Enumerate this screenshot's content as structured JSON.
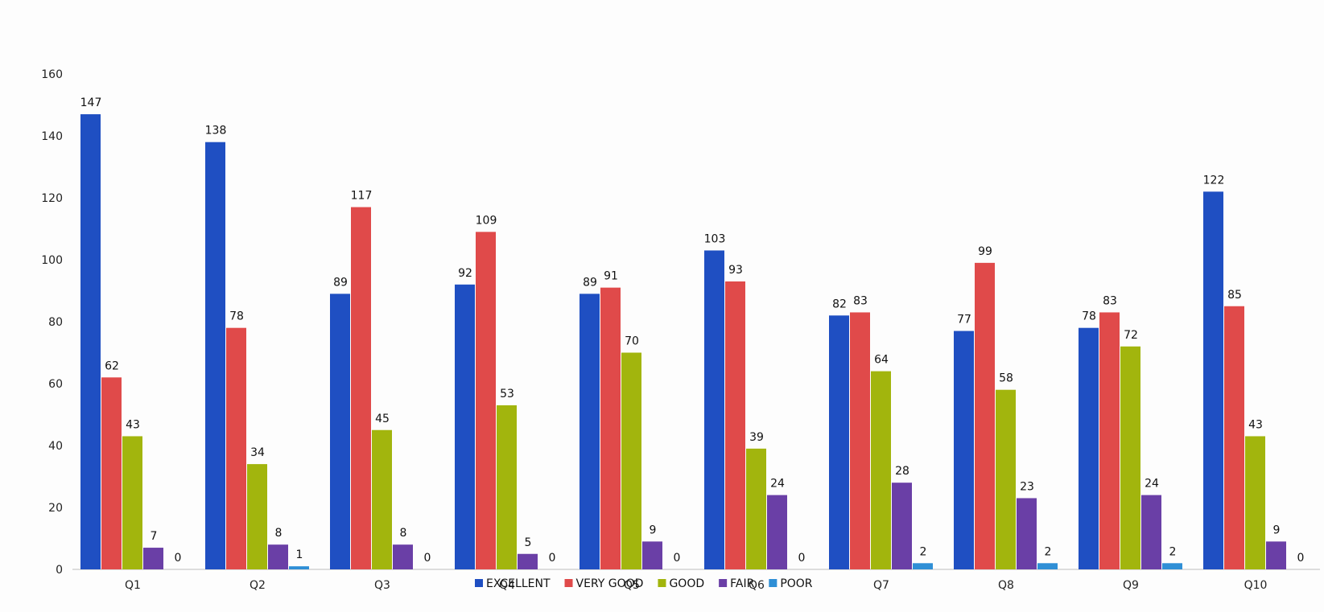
{
  "chart_data": {
    "type": "bar",
    "title": "",
    "xlabel": "",
    "ylabel": "",
    "ylim": [
      0,
      160
    ],
    "yticks": [
      0,
      20,
      40,
      60,
      80,
      100,
      120,
      140,
      160
    ],
    "grid": false,
    "legend_position": "bottom",
    "categories": [
      "Q1",
      "Q2",
      "Q3",
      "Q4",
      "Q5",
      "Q6",
      "Q7",
      "Q8",
      "Q9",
      "Q10"
    ],
    "series": [
      {
        "name": "EXCELLENT",
        "color": "#1f4fc2",
        "values": [
          147,
          138,
          89,
          92,
          89,
          103,
          82,
          77,
          78,
          122
        ]
      },
      {
        "name": "VERY GOOD",
        "color": "#e04a4a",
        "values": [
          62,
          78,
          117,
          109,
          91,
          93,
          83,
          99,
          83,
          85
        ]
      },
      {
        "name": "GOOD",
        "color": "#a2b50d",
        "values": [
          43,
          34,
          45,
          53,
          70,
          39,
          64,
          58,
          72,
          43
        ]
      },
      {
        "name": "FAIR",
        "color": "#6a3fa6",
        "values": [
          7,
          8,
          8,
          5,
          9,
          24,
          28,
          23,
          24,
          9
        ]
      },
      {
        "name": "POOR",
        "color": "#2f8fd6",
        "values": [
          0,
          1,
          0,
          0,
          0,
          0,
          2,
          2,
          2,
          0
        ]
      }
    ]
  }
}
